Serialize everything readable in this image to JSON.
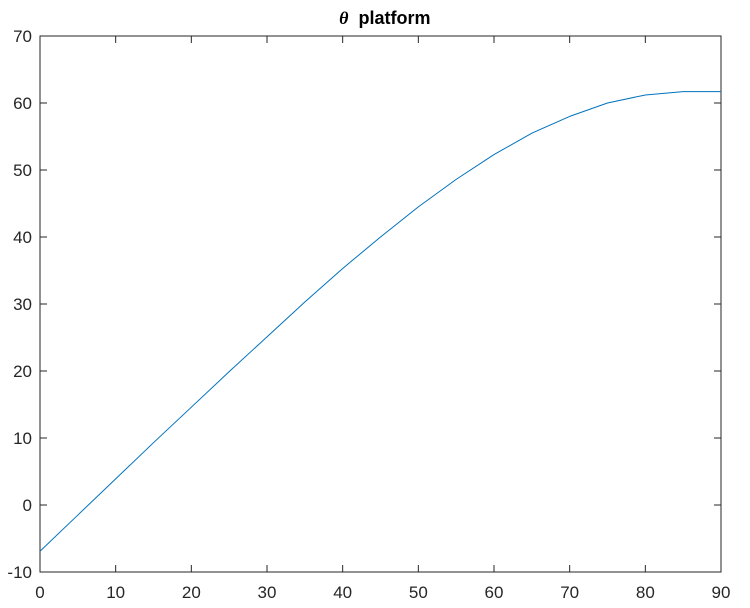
{
  "chart_data": {
    "type": "line",
    "title": {
      "symbol": "θ",
      "text": "platform"
    },
    "xlabel": "",
    "ylabel": "",
    "xlim": [
      0,
      90
    ],
    "ylim": [
      -10,
      70
    ],
    "x_ticks": [
      0,
      10,
      20,
      30,
      40,
      50,
      60,
      70,
      80,
      90
    ],
    "y_ticks": [
      -10,
      0,
      10,
      20,
      30,
      40,
      50,
      60,
      70
    ],
    "grid": false,
    "series": [
      {
        "color": "#0072BD",
        "x": [
          0,
          5,
          10,
          15,
          20,
          25,
          30,
          35,
          40,
          45,
          50,
          55,
          60,
          65,
          70,
          75,
          80,
          85,
          90
        ],
        "y": [
          -6.9,
          -1.5,
          3.9,
          9.3,
          14.6,
          19.9,
          25.1,
          30.3,
          35.3,
          40.0,
          44.5,
          48.6,
          52.3,
          55.5,
          58.0,
          60.0,
          61.2,
          61.7,
          61.7
        ]
      }
    ]
  }
}
